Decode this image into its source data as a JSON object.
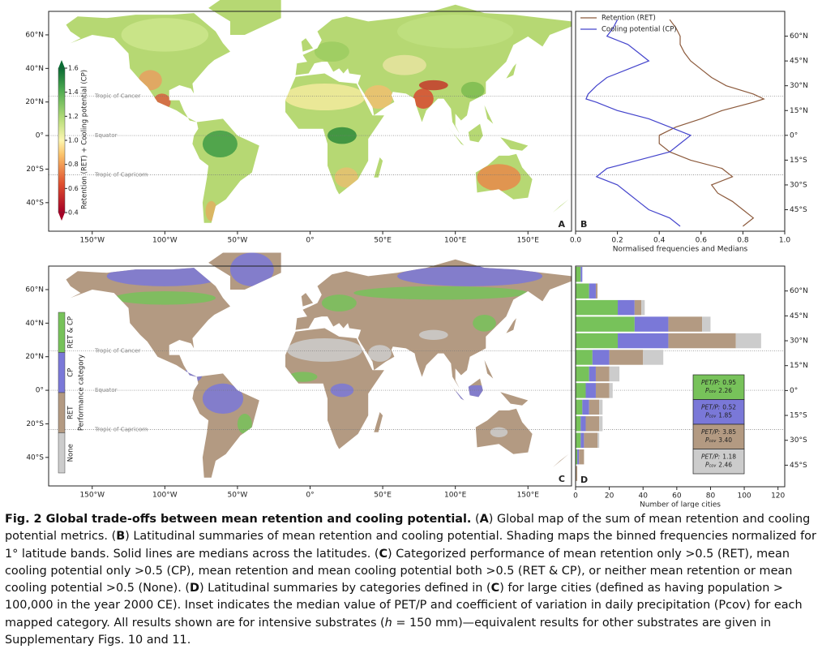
{
  "maps": {
    "xlim": [
      -180,
      180
    ],
    "ylim": [
      -57,
      74
    ],
    "lon_ticks": [
      {
        "value": -150,
        "label": "150°W"
      },
      {
        "value": -100,
        "label": "100°W"
      },
      {
        "value": -50,
        "label": "50°W"
      },
      {
        "value": 0,
        "label": "0°"
      },
      {
        "value": 50,
        "label": "50°E"
      },
      {
        "value": 100,
        "label": "100°E"
      },
      {
        "value": 150,
        "label": "150°E"
      }
    ],
    "lat_ticks": [
      {
        "value": 60,
        "label": "60°N"
      },
      {
        "value": 40,
        "label": "40°N"
      },
      {
        "value": 20,
        "label": "20°N"
      },
      {
        "value": 0,
        "label": "0°"
      },
      {
        "value": -20,
        "label": "20°S"
      },
      {
        "value": -40,
        "label": "40°S"
      }
    ],
    "reference_lines": [
      {
        "value": 23.4,
        "label": "Tropic of Cancer"
      },
      {
        "value": 0,
        "label": "Equator"
      },
      {
        "value": -23.4,
        "label": "Tropic of Capricorn"
      }
    ],
    "panel_a": {
      "label": "A",
      "colorbar_label": "Retention (RET) + Cooling potential (CP)",
      "colorbar_range": [
        0.4,
        1.6
      ],
      "colorbar_ticks": [
        {
          "value": 1.6,
          "label": "1.6"
        },
        {
          "value": 1.4,
          "label": "1.4"
        },
        {
          "value": 1.2,
          "label": "1.2"
        },
        {
          "value": 1.0,
          "label": "1.0"
        },
        {
          "value": 0.8,
          "label": "0.8"
        },
        {
          "value": 0.6,
          "label": "0.6"
        },
        {
          "value": 0.4,
          "label": "0.4"
        }
      ]
    },
    "panel_c": {
      "label": "C",
      "legend_title": "Performance category"
    }
  },
  "chart_data": [
    {
      "type": "line",
      "label": "B",
      "xlabel": "Normalised frequencies and Medians",
      "y": [
        70,
        65,
        60,
        55,
        50,
        45,
        40,
        35,
        30,
        25,
        22,
        20,
        15,
        10,
        5,
        0,
        -5,
        -10,
        -15,
        -20,
        -25,
        -30,
        -35,
        -40,
        -45,
        -50,
        -55
      ],
      "series": [
        {
          "name": "Retention (RET)",
          "color": "#8c5a3c",
          "values": [
            0.45,
            0.48,
            0.5,
            0.5,
            0.52,
            0.55,
            0.6,
            0.65,
            0.72,
            0.85,
            0.9,
            0.85,
            0.7,
            0.6,
            0.48,
            0.4,
            0.4,
            0.45,
            0.55,
            0.7,
            0.75,
            0.65,
            0.68,
            0.75,
            0.8,
            0.85,
            0.8
          ]
        },
        {
          "name": "Cooling potential (CP)",
          "color": "#4444cc",
          "values": [
            0.2,
            0.18,
            0.15,
            0.25,
            0.3,
            0.35,
            0.25,
            0.15,
            0.1,
            0.06,
            0.05,
            0.1,
            0.2,
            0.35,
            0.45,
            0.55,
            0.5,
            0.45,
            0.3,
            0.15,
            0.1,
            0.2,
            0.25,
            0.3,
            0.35,
            0.45,
            0.5
          ]
        }
      ],
      "xlim": [
        0,
        1
      ],
      "xticks": [
        {
          "value": 0,
          "label": "0.0"
        },
        0.2,
        0.4,
        0.6,
        0.8,
        {
          "value": 1,
          "label": "1.0"
        }
      ],
      "ylim": [
        -58,
        75
      ],
      "yticks": [
        {
          "value": 60,
          "label": "60°N"
        },
        {
          "value": 45,
          "label": "45°N"
        },
        {
          "value": 30,
          "label": "30°N"
        },
        {
          "value": 15,
          "label": "15°N"
        },
        {
          "value": 0,
          "label": "0°"
        },
        {
          "value": -15,
          "label": "15°S"
        },
        {
          "value": -30,
          "label": "30°S"
        },
        {
          "value": -45,
          "label": "45°S"
        }
      ],
      "legend": "upper left"
    },
    {
      "type": "bar",
      "orientation": "horizontal",
      "stacked": true,
      "label": "D",
      "xlabel": "Number of large cities",
      "y": [
        70,
        60,
        50,
        40,
        30,
        20,
        10,
        0,
        -10,
        -20,
        -30,
        -40,
        -50
      ],
      "series": [
        {
          "name": "RET & CP",
          "color": "#77c25a",
          "values": [
            3,
            8,
            25,
            35,
            25,
            10,
            8,
            6,
            4,
            3,
            3,
            1,
            0
          ]
        },
        {
          "name": "CP",
          "color": "#7a78d8",
          "values": [
            1,
            4,
            10,
            20,
            30,
            10,
            4,
            6,
            4,
            3,
            2,
            1,
            0
          ]
        },
        {
          "name": "RET",
          "color": "#b39a82",
          "values": [
            0,
            1,
            4,
            20,
            40,
            20,
            8,
            8,
            6,
            8,
            8,
            3,
            1
          ]
        },
        {
          "name": "None",
          "color": "#cccccc",
          "values": [
            0,
            0,
            2,
            5,
            15,
            12,
            6,
            2,
            2,
            2,
            1,
            0,
            0
          ]
        }
      ],
      "xlim": [
        0,
        124
      ],
      "xticks": [
        0,
        20,
        40,
        60,
        80,
        100,
        120
      ],
      "ylim": [
        -58,
        75
      ],
      "yticks": [
        {
          "value": 60,
          "label": "60°N"
        },
        {
          "value": 45,
          "label": "45°N"
        },
        {
          "value": 30,
          "label": "30°N"
        },
        {
          "value": 15,
          "label": "15°N"
        },
        {
          "value": 0,
          "label": "0°"
        },
        {
          "value": -15,
          "label": "15°S"
        },
        {
          "value": -30,
          "label": "30°S"
        },
        {
          "value": -45,
          "label": "45°S"
        }
      ],
      "inset": {
        "petp_label": "PET/P:",
        "pcov_label": "P",
        "pcov_sub": "cov",
        "rows": [
          {
            "petp": "0.95",
            "pcov": "2.26"
          },
          {
            "petp": "0.52",
            "pcov": "1.85"
          },
          {
            "petp": "3.85",
            "pcov": "3.40"
          },
          {
            "petp": "1.18",
            "pcov": "2.46"
          }
        ]
      }
    }
  ],
  "caption": [
    {
      "text": "Fig. 2 Global trade-offs between mean retention and cooling potential.",
      "bold": true
    },
    {
      "text": " ("
    },
    {
      "text": "A",
      "bold": true
    },
    {
      "text": ") Global map of the sum of mean retention and cooling potential metrics. ("
    },
    {
      "text": "B",
      "bold": true
    },
    {
      "text": ") Latitudinal summaries of mean retention and cooling potential. Shading maps the binned frequencies normalized for 1° latitude bands. Solid lines are medians across the latitudes. ("
    },
    {
      "text": "C",
      "bold": true
    },
    {
      "text": ") Categorized performance of mean retention only >0.5 (RET), mean cooling potential only >0.5 (CP), mean retention and mean cooling potential both >0.5 (RET & CP), or neither mean retention or mean cooling potential >0.5 (None). ("
    },
    {
      "text": "D",
      "bold": true
    },
    {
      "text": ") Latitudinal summaries by categories defined in ("
    },
    {
      "text": "C",
      "bold": true
    },
    {
      "text": ") for large cities (defined as having population > 100,000 in the year 2000 CE). Inset indicates the median value of PET/P and coefficient of variation in daily precipitation (Pcov) for each mapped category. All results shown are for intensive substrates ("
    },
    {
      "text": "h",
      "italic": true
    },
    {
      "text": " = 150 mm)—equivalent results for other substrates are given in Supplementary Figs. 10 and 11."
    }
  ]
}
